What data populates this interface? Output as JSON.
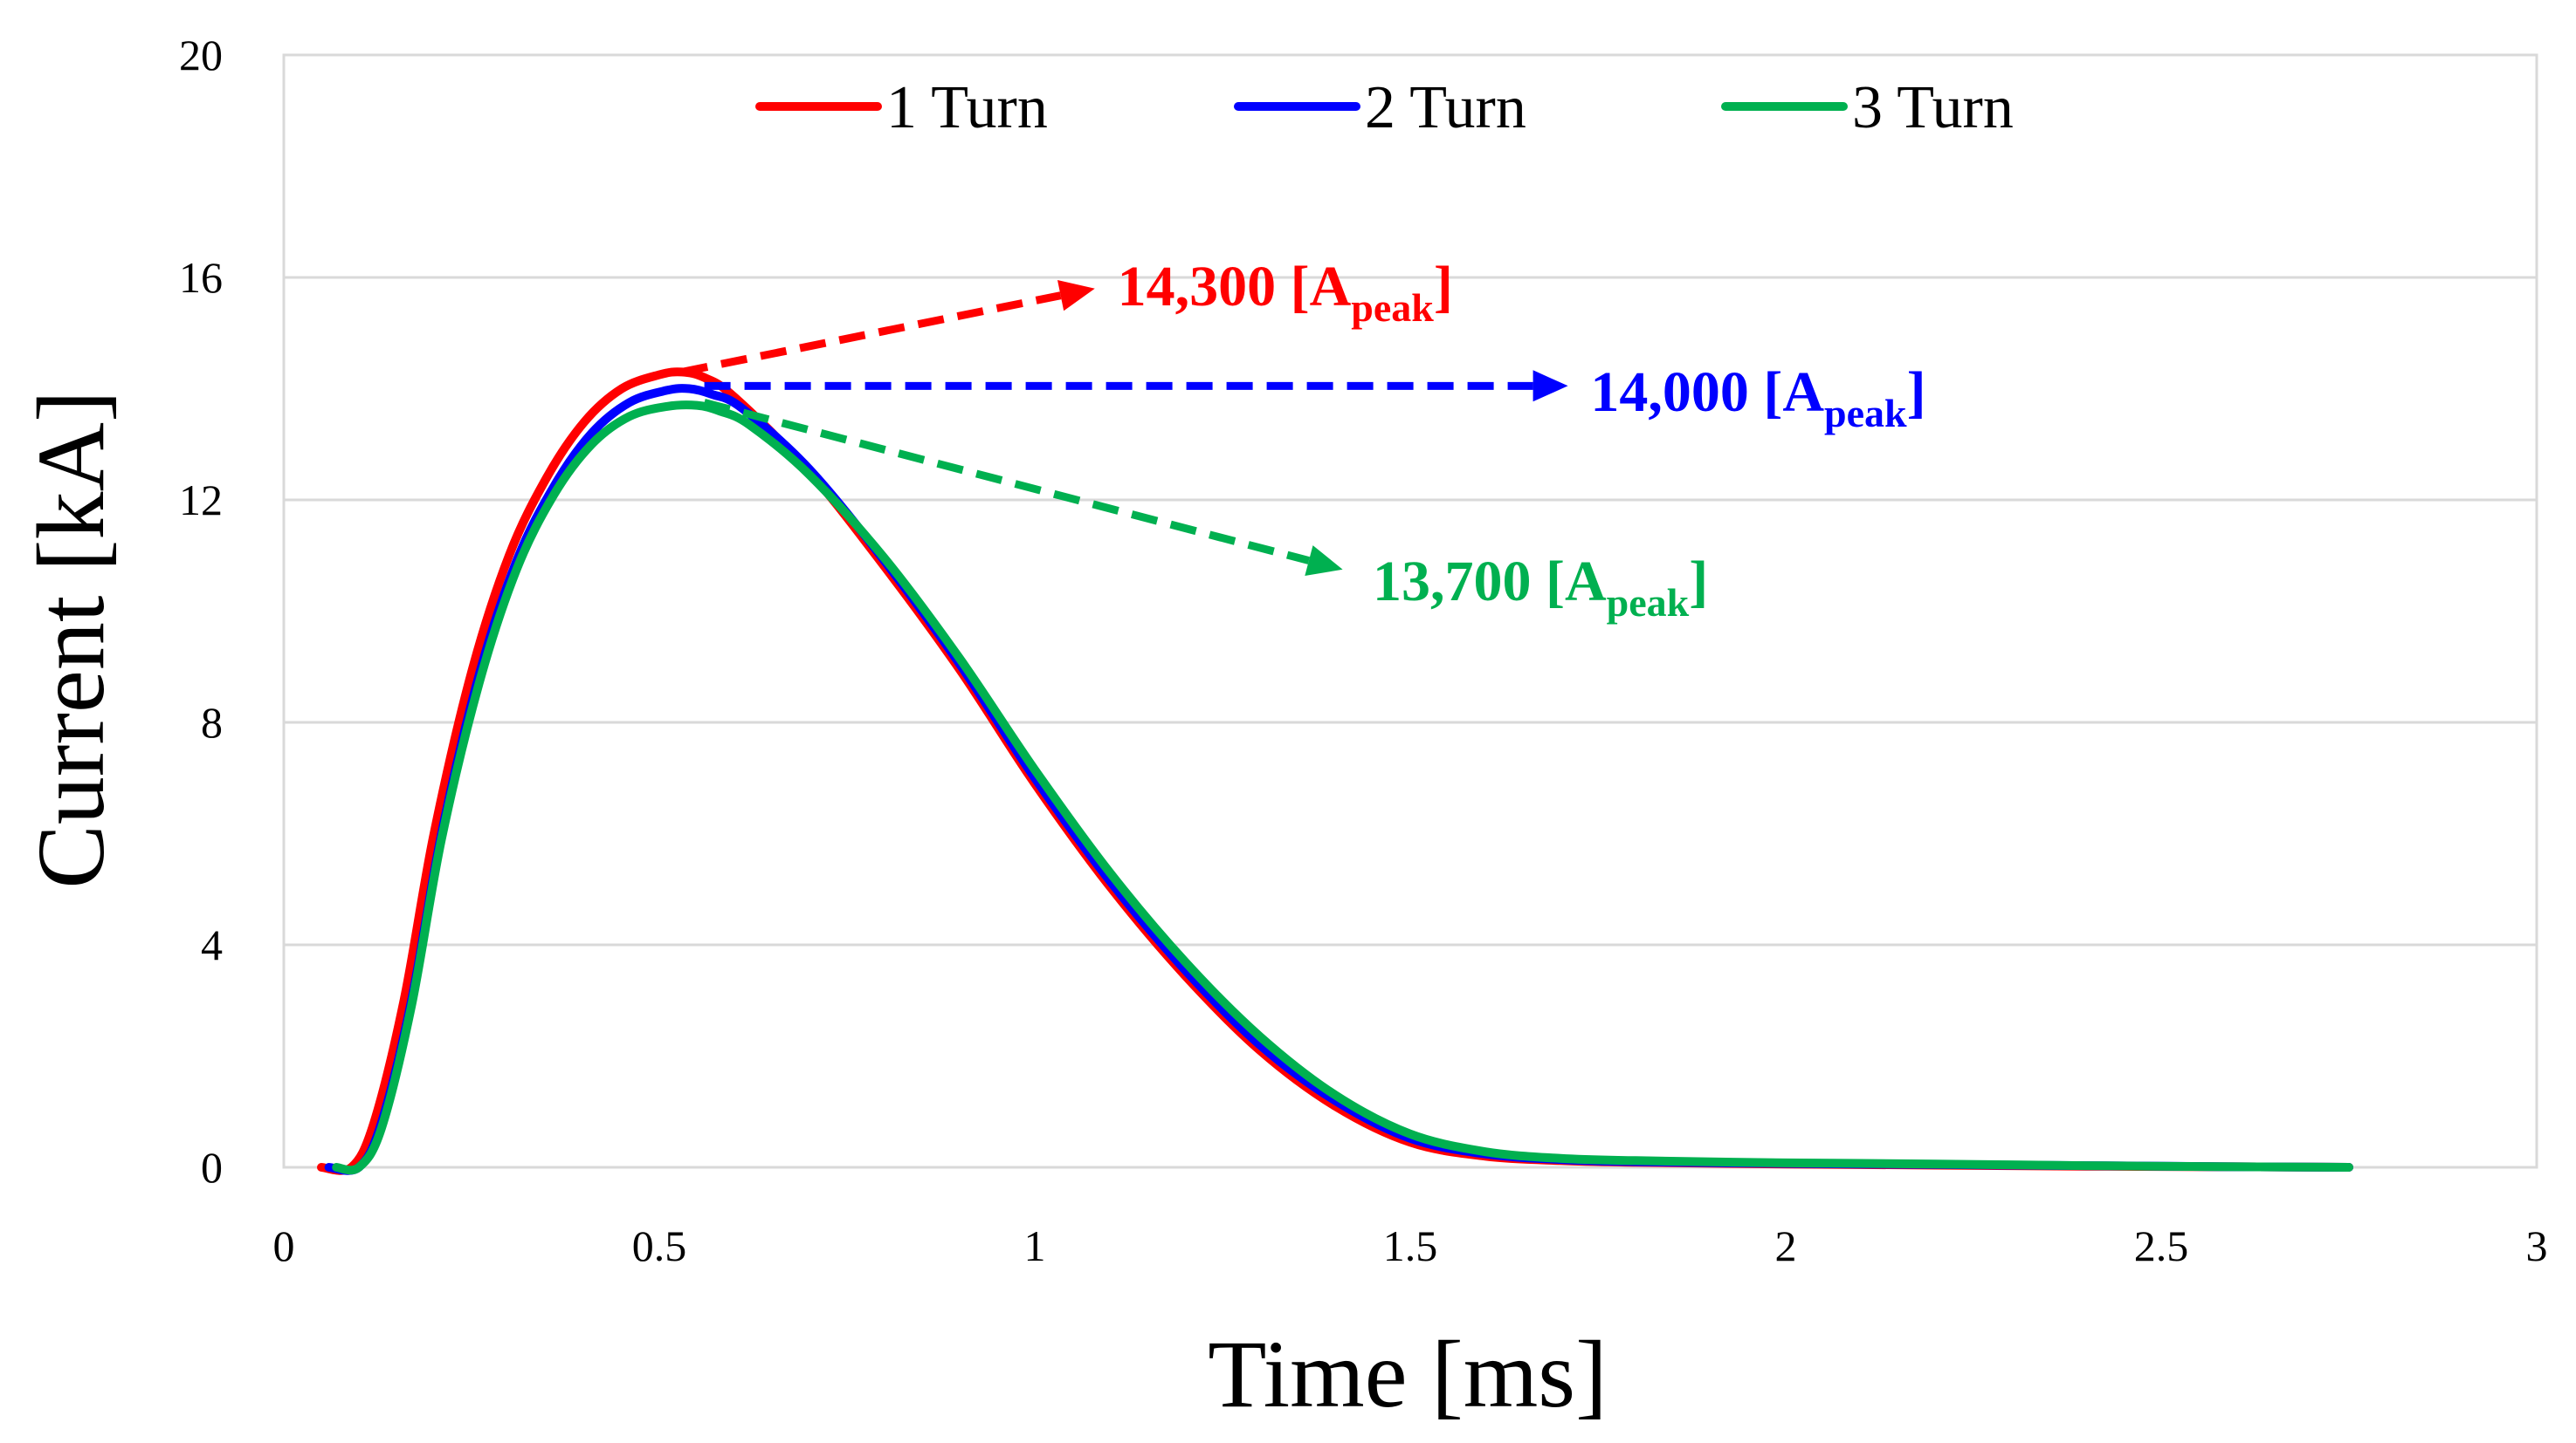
{
  "chart_data": {
    "type": "line",
    "title": "",
    "xlabel": "Time [ms]",
    "ylabel": "Current [kA]",
    "xlim": [
      0,
      3
    ],
    "ylim": [
      0,
      20
    ],
    "grid": true,
    "xticks": [
      "0",
      "0.5",
      "1",
      "1.5",
      "2",
      "2.5",
      "3"
    ],
    "yticks": [
      "0",
      "4",
      "8",
      "12",
      "16",
      "20"
    ],
    "legend_position": "top",
    "series": [
      {
        "name": "1 Turn",
        "color": "#ff0000",
        "x": [
          0.05,
          0.09,
          0.12,
          0.16,
          0.2,
          0.25,
          0.3,
          0.35,
          0.4,
          0.45,
          0.5,
          0.53,
          0.56,
          0.6,
          0.7,
          0.8,
          0.9,
          1.0,
          1.1,
          1.2,
          1.3,
          1.4,
          1.5,
          1.6,
          1.7,
          1.8,
          2.0,
          2.2,
          2.4,
          2.6,
          2.75
        ],
        "y": [
          0,
          0,
          0.8,
          3.0,
          6.0,
          8.9,
          11.0,
          12.4,
          13.4,
          14.0,
          14.25,
          14.3,
          14.2,
          13.85,
          12.5,
          10.8,
          8.95,
          6.9,
          5.05,
          3.45,
          2.1,
          1.1,
          0.45,
          0.2,
          0.12,
          0.09,
          0.06,
          0.04,
          0.02,
          0.01,
          0
        ]
      },
      {
        "name": "2 Turn",
        "color": "#0000ff",
        "x": [
          0.06,
          0.1,
          0.13,
          0.17,
          0.21,
          0.26,
          0.31,
          0.36,
          0.41,
          0.46,
          0.51,
          0.54,
          0.57,
          0.61,
          0.7,
          0.8,
          0.9,
          1.0,
          1.1,
          1.2,
          1.3,
          1.4,
          1.5,
          1.6,
          1.7,
          1.8,
          2.0,
          2.2,
          2.4,
          2.6,
          2.75
        ],
        "y": [
          0,
          0,
          0.8,
          3.0,
          6.0,
          8.85,
          10.9,
          12.25,
          13.2,
          13.75,
          13.97,
          14.0,
          13.9,
          13.65,
          12.55,
          10.9,
          9.05,
          7.0,
          5.15,
          3.55,
          2.2,
          1.2,
          0.52,
          0.24,
          0.14,
          0.1,
          0.07,
          0.05,
          0.03,
          0.01,
          0
        ]
      },
      {
        "name": "3 Turn",
        "color": "#00b050",
        "x": [
          0.07,
          0.1,
          0.13,
          0.17,
          0.21,
          0.26,
          0.31,
          0.36,
          0.41,
          0.46,
          0.51,
          0.55,
          0.58,
          0.62,
          0.7,
          0.8,
          0.9,
          1.0,
          1.1,
          1.2,
          1.3,
          1.4,
          1.5,
          1.6,
          1.7,
          1.8,
          2.0,
          2.2,
          2.4,
          2.6,
          2.75
        ],
        "y": [
          0,
          0,
          0.7,
          2.9,
          5.9,
          8.7,
          10.75,
          12.1,
          13.0,
          13.5,
          13.68,
          13.7,
          13.6,
          13.35,
          12.45,
          10.95,
          9.15,
          7.15,
          5.3,
          3.7,
          2.35,
          1.3,
          0.6,
          0.28,
          0.16,
          0.12,
          0.08,
          0.06,
          0.03,
          0.01,
          0
        ]
      }
    ],
    "annotations": [
      {
        "main": "14,300 [A",
        "sub": "peak",
        "close": "]",
        "color": "#ff0000",
        "point": [
          0.53,
          14.3
        ],
        "arrow_to": [
          1.08,
          15.8
        ],
        "text_at": [
          1.11,
          15.5
        ]
      },
      {
        "main": "14,000 [A",
        "sub": "peak",
        "close": "]",
        "color": "#0000ff",
        "point": [
          0.56,
          14.05
        ],
        "arrow_to": [
          1.71,
          14.05
        ],
        "text_at": [
          1.74,
          13.6
        ]
      },
      {
        "main": "13,700 [A",
        "sub": "peak",
        "close": "]",
        "color": "#00b050",
        "point": [
          0.56,
          13.75
        ],
        "arrow_to": [
          1.41,
          10.75
        ],
        "text_at": [
          1.45,
          10.2
        ]
      }
    ]
  }
}
